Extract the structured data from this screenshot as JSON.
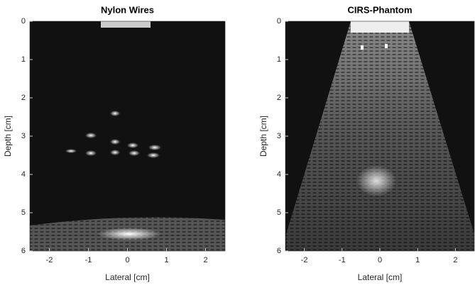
{
  "chart_data": [
    {
      "type": "image",
      "title": "Nylon Wires",
      "xlabel": "Lateral [cm]",
      "ylabel": "Depth [cm]",
      "xlim": [
        -2.5,
        2.5
      ],
      "ylim": [
        0,
        6
      ],
      "y_reversed": true,
      "xticks": [
        -2,
        -1,
        0,
        1,
        2
      ],
      "yticks": [
        0,
        1,
        2,
        3,
        4,
        5,
        6
      ]
    },
    {
      "type": "image",
      "title": "CIRS-Phantom",
      "xlabel": "Lateral [cm]",
      "ylabel": "Depth [cm]",
      "xlim": [
        -2.5,
        2.5
      ],
      "ylim": [
        0,
        6
      ],
      "y_reversed": true,
      "xticks": [
        -2,
        -1,
        0,
        1,
        2
      ],
      "yticks": [
        0,
        1,
        2,
        3,
        4,
        5,
        6
      ]
    }
  ]
}
